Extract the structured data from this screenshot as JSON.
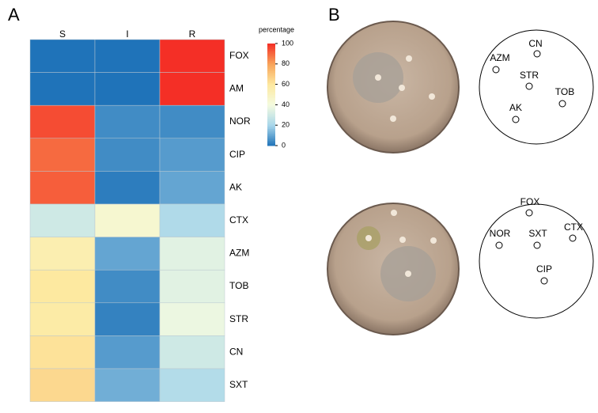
{
  "panel_labels": [
    "A",
    "B"
  ],
  "chart_data": {
    "type": "heatmap",
    "columns": [
      "S",
      "I",
      "R"
    ],
    "rows": [
      "FOX",
      "AM",
      "NOR",
      "CIP",
      "AK",
      "CTX",
      "AZM",
      "TOB",
      "STR",
      "CN",
      "SXT"
    ],
    "values": [
      [
        0,
        0,
        100
      ],
      [
        0,
        0,
        100
      ],
      [
        95,
        5,
        5
      ],
      [
        90,
        5,
        8
      ],
      [
        92,
        2,
        10
      ],
      [
        30,
        45,
        22
      ],
      [
        55,
        10,
        35
      ],
      [
        60,
        5,
        35
      ],
      [
        58,
        3,
        38
      ],
      [
        62,
        8,
        30
      ],
      [
        65,
        12,
        23
      ]
    ],
    "colorbar_title": "percentage",
    "clim": [
      0,
      100
    ],
    "cticks": [
      0,
      20,
      40,
      60,
      80,
      100
    ],
    "colormap": [
      "#1f73b9",
      "#a8d6ea",
      "#f4fbe0",
      "#fde9a0",
      "#f8a45a",
      "#f42f26"
    ]
  },
  "plates": [
    {
      "disks": [
        "CN",
        "AZM",
        "STR",
        "TOB",
        "AK"
      ]
    },
    {
      "disks": [
        "FOX",
        "NOR",
        "SXT",
        "CTX",
        "CIP"
      ]
    }
  ]
}
